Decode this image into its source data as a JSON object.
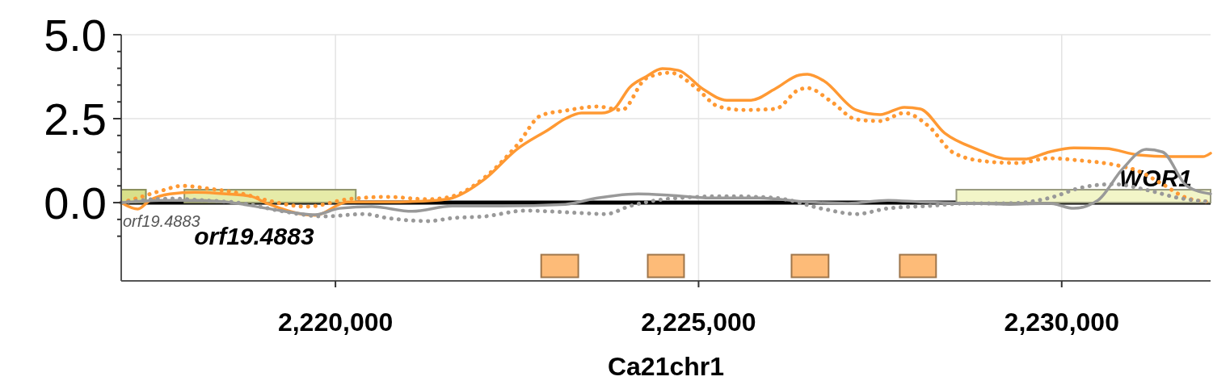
{
  "chart_data": {
    "type": "line",
    "xlabel": "Ca21chr1",
    "xlim": [
      2217050,
      2232050
    ],
    "xticks": [
      {
        "value": 2220000,
        "label": "2,220,000"
      },
      {
        "value": 2225000,
        "label": "2,225,000"
      },
      {
        "value": 2230000,
        "label": "2,230,000"
      }
    ],
    "ylim": [
      -2.33,
      5.0
    ],
    "yticks": [
      {
        "value": -1.0,
        "label": null
      },
      {
        "value": -0.5,
        "label": null
      },
      {
        "value": 0,
        "label": "0.0"
      },
      {
        "value": 0.5,
        "label": null
      },
      {
        "value": 1.0,
        "label": null
      },
      {
        "value": 1.5,
        "label": null
      },
      {
        "value": 2.0,
        "label": null
      },
      {
        "value": 2.5,
        "label": "2.5"
      },
      {
        "value": 3.0,
        "label": null
      },
      {
        "value": 3.5,
        "label": null
      },
      {
        "value": 4.0,
        "label": null
      },
      {
        "value": 4.5,
        "label": null
      },
      {
        "value": 5.0,
        "label": "5.0"
      }
    ],
    "grid": true,
    "marker": "none",
    "ref_lines": [
      {
        "axis": "y",
        "value": 0,
        "color": "#000000"
      }
    ],
    "bands": [
      {
        "axis": "x",
        "from": 2217050,
        "to": 2217390,
        "label": "orf19.4883",
        "color": "#d9e08a"
      },
      {
        "axis": "x",
        "from": 2217920,
        "to": 2220280,
        "label": "orf19.4883",
        "color": "#e6eba8"
      },
      {
        "axis": "x",
        "from": 2228550,
        "to": 2232050,
        "label": "WOR1",
        "color": "#f2f5c8"
      },
      {
        "axis": "x",
        "from": 2222833,
        "to": 2223344,
        "color": "#fdbb78"
      },
      {
        "axis": "x",
        "from": 2224300,
        "to": 2224800,
        "color": "#fdbb78"
      },
      {
        "axis": "x",
        "from": 2226280,
        "to": 2226790,
        "color": "#fdbb78"
      },
      {
        "axis": "x",
        "from": 2227770,
        "to": 2228270,
        "color": "#fdbb78"
      }
    ],
    "series": [
      {
        "color": "#ff9933",
        "line_style": "solid",
        "x": [
          2217050,
          2217278,
          2217445,
          2217722,
          2218056,
          2218500,
          2218833,
          2219056,
          2219722,
          2220167,
          2220722,
          2221389,
          2221611,
          2222055,
          2222500,
          2222944,
          2223166,
          2223389,
          2223666,
          2223833,
          2224055,
          2224277,
          2224500,
          2224722,
          2225055,
          2225388,
          2225722,
          2226055,
          2226388,
          2226499,
          2226722,
          2227166,
          2227499,
          2227833,
          2228055,
          2228388,
          2228832,
          2229277,
          2229499,
          2229832,
          2230165,
          2230610,
          2231054,
          2231499,
          2231943,
          2232050
        ],
        "values": [
          0.0,
          -0.19,
          0.07,
          0.26,
          0.31,
          0.26,
          0.19,
          -0.02,
          -0.38,
          0.02,
          0.02,
          0.07,
          0.14,
          0.7,
          1.59,
          2.19,
          2.5,
          2.67,
          2.67,
          2.79,
          3.44,
          3.75,
          3.99,
          3.94,
          3.39,
          3.05,
          3.05,
          3.39,
          3.8,
          3.82,
          3.63,
          2.76,
          2.62,
          2.84,
          2.79,
          2.07,
          1.59,
          1.3,
          1.3,
          1.51,
          1.63,
          1.61,
          1.42,
          1.37,
          1.37,
          1.47
        ]
      },
      {
        "color": "#ff9933",
        "line_style": "dotted",
        "x": [
          2217050,
          2217278,
          2217611,
          2217889,
          2218278,
          2218722,
          2219056,
          2219611,
          2220167,
          2220722,
          2221278,
          2221611,
          2222055,
          2222500,
          2222833,
          2223166,
          2223611,
          2223944,
          2224277,
          2224611,
          2224944,
          2225277,
          2225611,
          2226055,
          2226388,
          2226499,
          2226833,
          2227166,
          2227499,
          2227833,
          2228166,
          2228499,
          2228943,
          2229388,
          2229832,
          2230277,
          2230721,
          2231054,
          2231388,
          2231721,
          2232050
        ],
        "values": [
          0.0,
          0.14,
          0.36,
          0.5,
          0.41,
          0.26,
          0.07,
          -0.12,
          0.1,
          0.17,
          0.1,
          0.19,
          0.75,
          1.71,
          2.6,
          2.74,
          2.86,
          2.76,
          3.7,
          3.87,
          3.46,
          2.86,
          2.76,
          2.79,
          3.37,
          3.41,
          3.0,
          2.48,
          2.43,
          2.67,
          2.28,
          1.5,
          1.23,
          1.18,
          1.32,
          1.25,
          1.13,
          0.94,
          0.55,
          0.14,
          0.02
        ]
      },
      {
        "color": "#999999",
        "line_style": "solid",
        "x": [
          2217050,
          2217611,
          2218056,
          2218500,
          2219056,
          2219722,
          2220056,
          2220500,
          2221056,
          2221611,
          2222278,
          2223166,
          2223611,
          2224166,
          2224611,
          2225166,
          2225833,
          2226499,
          2227055,
          2227610,
          2228055,
          2228721,
          2229277,
          2229832,
          2230165,
          2230499,
          2230832,
          2231165,
          2231388,
          2231721,
          2232050
        ],
        "values": [
          0.0,
          0.07,
          0.07,
          0.02,
          -0.17,
          -0.36,
          -0.17,
          -0.12,
          -0.26,
          -0.1,
          -0.1,
          -0.05,
          0.14,
          0.26,
          0.22,
          0.14,
          0.14,
          0.02,
          -0.02,
          0.07,
          0.02,
          -0.02,
          -0.05,
          -0.02,
          -0.17,
          0.07,
          0.99,
          1.59,
          1.51,
          0.5,
          0.26
        ]
      },
      {
        "color": "#999999",
        "line_style": "dotted",
        "x": [
          2217050,
          2217722,
          2218167,
          2218722,
          2219278,
          2219833,
          2220389,
          2220722,
          2221278,
          2221611,
          2222055,
          2222611,
          2223389,
          2223722,
          2224055,
          2224722,
          2225388,
          2226055,
          2226722,
          2227166,
          2227610,
          2228166,
          2228721,
          2229277,
          2229832,
          2230277,
          2230721,
          2231165,
          2231610,
          2232050
        ],
        "values": [
          0.0,
          0.12,
          0.07,
          -0.02,
          -0.26,
          -0.41,
          -0.34,
          -0.46,
          -0.55,
          -0.46,
          -0.41,
          -0.24,
          -0.31,
          -0.34,
          -0.1,
          0.14,
          0.19,
          0.14,
          -0.19,
          -0.34,
          -0.17,
          -0.1,
          -0.02,
          -0.02,
          0.14,
          0.45,
          0.55,
          0.38,
          0.14,
          0.02
        ]
      }
    ]
  }
}
